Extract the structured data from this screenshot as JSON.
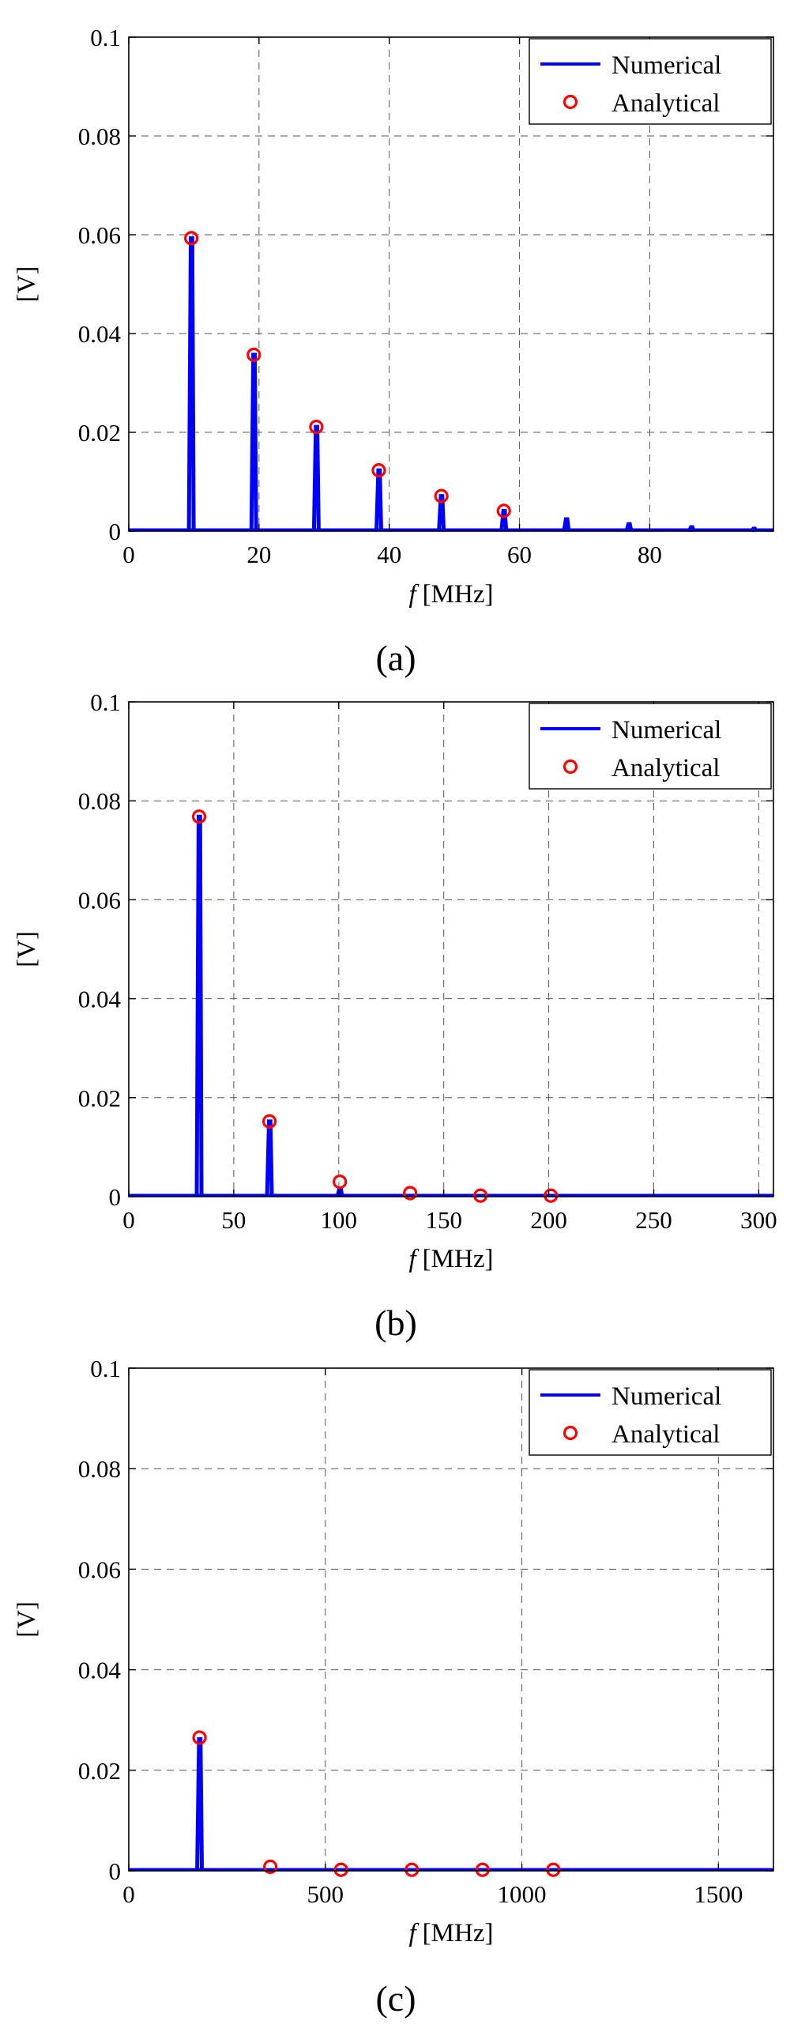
{
  "colors": {
    "numerical": "#0000ff",
    "analytical": "#ff0000",
    "background": "#ffffff"
  },
  "chart_data": [
    {
      "type": "line",
      "panel_label": "(a)",
      "xlabel_italic": "f",
      "xlabel_unit": "[MHz]",
      "ylabel": "[V]",
      "xlim": [
        0,
        99
      ],
      "ylim": [
        0,
        0.1
      ],
      "xticks": [
        0,
        20,
        40,
        60,
        80
      ],
      "xtick_labels": [
        "0",
        "20",
        "40",
        "60",
        "80"
      ],
      "yticks": [
        0,
        0.02,
        0.04,
        0.06,
        0.08,
        0.1
      ],
      "ytick_labels": [
        "0",
        "0.02",
        "0.04",
        "0.06",
        "0.08",
        "0.1"
      ],
      "grid": true,
      "legend_position": "top-right",
      "series": [
        {
          "name": "Numerical",
          "style": "line",
          "x": [
            9.6,
            19.2,
            28.8,
            38.4,
            48.0,
            57.6,
            67.2,
            76.8,
            86.4,
            96.0
          ],
          "values": [
            0.0593,
            0.0357,
            0.0211,
            0.0123,
            0.0071,
            0.0041,
            0.0024,
            0.0014,
            0.0008,
            0.0005
          ]
        },
        {
          "name": "Analytical",
          "style": "marker",
          "x": [
            9.6,
            19.2,
            28.8,
            38.4,
            48.0,
            57.6
          ],
          "values": [
            0.0593,
            0.0357,
            0.0211,
            0.0123,
            0.0071,
            0.0041
          ]
        }
      ]
    },
    {
      "type": "line",
      "panel_label": "(b)",
      "xlabel_italic": "f",
      "xlabel_unit": "[MHz]",
      "ylabel": "[V]",
      "xlim": [
        0,
        307
      ],
      "ylim": [
        0,
        0.1
      ],
      "xticks": [
        0,
        50,
        100,
        150,
        200,
        250,
        300
      ],
      "xtick_labels": [
        "0",
        "50",
        "100",
        "150",
        "200",
        "250",
        "300"
      ],
      "yticks": [
        0,
        0.02,
        0.04,
        0.06,
        0.08,
        0.1
      ],
      "ytick_labels": [
        "0",
        "0.02",
        "0.04",
        "0.06",
        "0.08",
        "0.1"
      ],
      "grid": true,
      "legend_position": "top-right",
      "series": [
        {
          "name": "Numerical",
          "style": "line",
          "x": [
            33.5,
            67.0,
            100.5
          ],
          "values": [
            0.0768,
            0.0152,
            0.0016
          ]
        },
        {
          "name": "Analytical",
          "style": "marker",
          "x": [
            33.5,
            67.0,
            100.5,
            134.0,
            167.5,
            201.0
          ],
          "values": [
            0.0768,
            0.0152,
            0.003,
            0.0007,
            0.0002,
            0.0002
          ]
        }
      ]
    },
    {
      "type": "line",
      "panel_label": "(c)",
      "xlabel_italic": "f",
      "xlabel_unit": "[MHz]",
      "ylabel": "[V]",
      "xlim": [
        0,
        1640
      ],
      "ylim": [
        0,
        0.1
      ],
      "xticks": [
        0,
        500,
        1000,
        1500
      ],
      "xtick_labels": [
        "0",
        "500",
        "1000",
        "1500"
      ],
      "yticks": [
        0,
        0.02,
        0.04,
        0.06,
        0.08,
        0.1
      ],
      "ytick_labels": [
        "0",
        "0.02",
        "0.04",
        "0.06",
        "0.08",
        "0.1"
      ],
      "grid": true,
      "legend_position": "top-right",
      "series": [
        {
          "name": "Numerical",
          "style": "line",
          "x": [
            180
          ],
          "values": [
            0.0262
          ]
        },
        {
          "name": "Analytical",
          "style": "marker",
          "x": [
            180,
            360,
            540,
            720,
            900,
            1080
          ],
          "values": [
            0.0265,
            0.0008,
            0.0002,
            0.0002,
            0.0002,
            0.0002
          ]
        }
      ]
    }
  ]
}
